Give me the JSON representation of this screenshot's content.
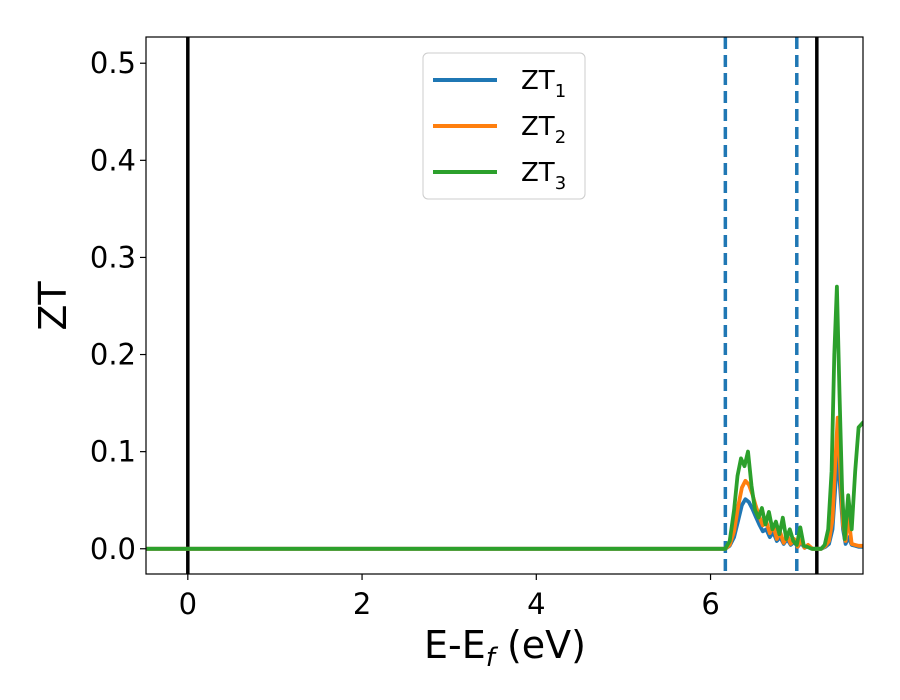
{
  "chart_data": {
    "type": "line",
    "xlabel_main": "E-E",
    "xlabel_sub": "f",
    "xlabel_unit": " (eV)",
    "ylabel": "ZT",
    "xlim": [
      -0.48,
      7.75
    ],
    "ylim": [
      -0.026,
      0.527
    ],
    "xticks": [
      0,
      2,
      4,
      6
    ],
    "xtick_labels": [
      "0",
      "2",
      "4",
      "6"
    ],
    "yticks": [
      0.0,
      0.1,
      0.2,
      0.3,
      0.4,
      0.5
    ],
    "ytick_labels": [
      "0.0",
      "0.1",
      "0.2",
      "0.3",
      "0.4",
      "0.5"
    ],
    "legend_position": "top-center",
    "vertical_lines": [
      {
        "x": 0.0,
        "color": "#000000",
        "style": "solid"
      },
      {
        "x": 7.22,
        "color": "#000000",
        "style": "solid"
      },
      {
        "x": 6.17,
        "color": "#1f77b4",
        "style": "dashed"
      },
      {
        "x": 6.99,
        "color": "#1f77b4",
        "style": "dashed"
      }
    ],
    "series": [
      {
        "name_main": "ZT",
        "name_sub": "1",
        "color": "#1f77b4",
        "x": [
          -0.48,
          6.0,
          6.17,
          6.22,
          6.27,
          6.32,
          6.36,
          6.4,
          6.44,
          6.48,
          6.52,
          6.56,
          6.6,
          6.64,
          6.68,
          6.72,
          6.76,
          6.8,
          6.84,
          6.88,
          6.92,
          6.96,
          7.0,
          7.04,
          7.08,
          7.12,
          7.17,
          7.22,
          7.27,
          7.32,
          7.36,
          7.4,
          7.43,
          7.46,
          7.49,
          7.52,
          7.55,
          7.58,
          7.62,
          7.66,
          7.7,
          7.75
        ],
        "y": [
          0.0,
          0.0,
          0.0,
          0.003,
          0.012,
          0.03,
          0.045,
          0.051,
          0.048,
          0.041,
          0.033,
          0.025,
          0.018,
          0.02,
          0.012,
          0.017,
          0.008,
          0.012,
          0.005,
          0.01,
          0.004,
          0.007,
          0.002,
          0.006,
          0.001,
          0.003,
          0.0,
          0.0,
          0.0,
          0.002,
          0.005,
          0.02,
          0.06,
          0.1,
          0.06,
          0.02,
          0.005,
          0.012,
          0.004,
          0.003,
          0.002,
          0.002
        ]
      },
      {
        "name_main": "ZT",
        "name_sub": "2",
        "color": "#ff7f0e",
        "x": [
          -0.48,
          6.0,
          6.17,
          6.22,
          6.27,
          6.32,
          6.36,
          6.4,
          6.44,
          6.48,
          6.52,
          6.56,
          6.6,
          6.64,
          6.68,
          6.72,
          6.76,
          6.8,
          6.84,
          6.88,
          6.92,
          6.96,
          7.0,
          7.04,
          7.08,
          7.12,
          7.17,
          7.22,
          7.27,
          7.32,
          7.36,
          7.4,
          7.43,
          7.46,
          7.49,
          7.52,
          7.55,
          7.58,
          7.62,
          7.66,
          7.7,
          7.75
        ],
        "y": [
          0.0,
          0.0,
          0.0,
          0.004,
          0.018,
          0.045,
          0.063,
          0.07,
          0.066,
          0.056,
          0.044,
          0.033,
          0.024,
          0.028,
          0.016,
          0.024,
          0.01,
          0.017,
          0.006,
          0.014,
          0.005,
          0.01,
          0.002,
          0.009,
          0.001,
          0.004,
          0.0,
          0.0,
          0.0,
          0.003,
          0.008,
          0.03,
          0.085,
          0.135,
          0.08,
          0.025,
          0.008,
          0.035,
          0.005,
          0.004,
          0.003,
          0.003
        ]
      },
      {
        "name_main": "ZT",
        "name_sub": "3",
        "color": "#2ca02c",
        "x": [
          -0.48,
          6.0,
          6.17,
          6.22,
          6.27,
          6.31,
          6.35,
          6.39,
          6.43,
          6.47,
          6.51,
          6.55,
          6.59,
          6.63,
          6.67,
          6.71,
          6.75,
          6.79,
          6.83,
          6.87,
          6.91,
          6.95,
          6.99,
          7.03,
          7.07,
          7.11,
          7.16,
          7.22,
          7.27,
          7.31,
          7.35,
          7.39,
          7.42,
          7.45,
          7.48,
          7.51,
          7.54,
          7.58,
          7.62,
          7.66,
          7.7,
          7.75
        ],
        "y": [
          0.0,
          0.0,
          0.0,
          0.008,
          0.04,
          0.075,
          0.093,
          0.085,
          0.1,
          0.065,
          0.04,
          0.032,
          0.042,
          0.025,
          0.038,
          0.02,
          0.028,
          0.015,
          0.032,
          0.01,
          0.02,
          0.008,
          0.004,
          0.022,
          0.003,
          0.002,
          0.0,
          0.0,
          0.0,
          0.004,
          0.02,
          0.08,
          0.2,
          0.27,
          0.16,
          0.06,
          0.01,
          0.055,
          0.02,
          0.08,
          0.125,
          0.13
        ]
      }
    ]
  }
}
